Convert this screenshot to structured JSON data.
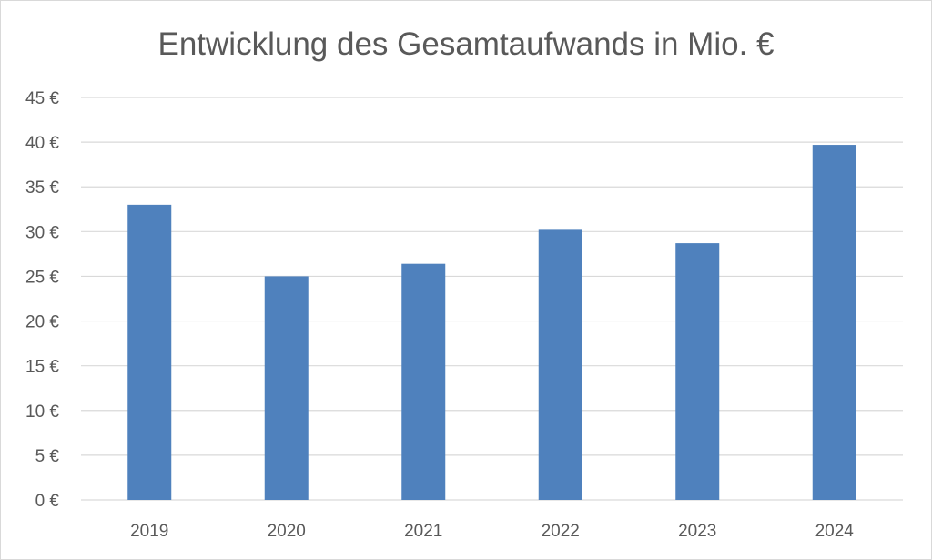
{
  "chart_data": {
    "type": "bar",
    "title": "Entwicklung des Gesamtaufwands in Mio. €",
    "xlabel": "",
    "ylabel": "",
    "categories": [
      "2019",
      "2020",
      "2021",
      "2022",
      "2023",
      "2024"
    ],
    "values": [
      33.0,
      25.0,
      26.4,
      30.2,
      28.7,
      39.7
    ],
    "ylim": [
      0,
      45
    ],
    "yticks": [
      0,
      5,
      10,
      15,
      20,
      25,
      30,
      35,
      40,
      45
    ],
    "ytick_labels": [
      "0 €",
      "5 €",
      "10 €",
      "15 €",
      "20 €",
      "25 €",
      "30 €",
      "35 €",
      "40 €",
      "45 €"
    ],
    "grid": true,
    "legend": "none",
    "bar_color": "#4f81bd",
    "grid_color": "#d9d9d9",
    "text_color": "#595959"
  }
}
